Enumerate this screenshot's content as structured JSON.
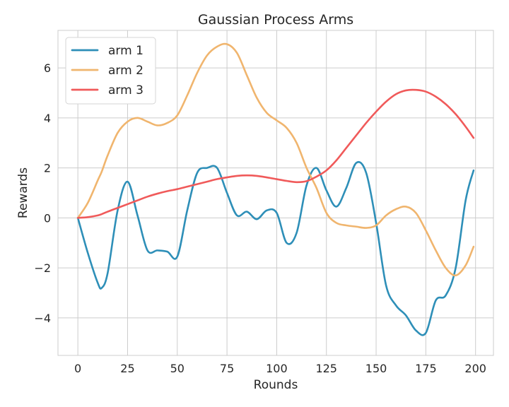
{
  "chart_data": {
    "type": "line",
    "title": "Gaussian Process Arms",
    "xlabel": "Rounds",
    "ylabel": "Rewards",
    "xlim": [
      -10,
      209
    ],
    "ylim": [
      -5.5,
      7.5
    ],
    "xticks": [
      0,
      25,
      50,
      75,
      100,
      125,
      150,
      175,
      200
    ],
    "yticks": [
      -4,
      -2,
      0,
      2,
      4,
      6
    ],
    "grid": true,
    "legend_position": "top-left",
    "x": [
      0,
      5,
      10,
      12,
      15,
      20,
      25,
      30,
      35,
      40,
      45,
      50,
      55,
      60,
      65,
      70,
      75,
      80,
      85,
      90,
      95,
      100,
      105,
      110,
      115,
      120,
      125,
      130,
      135,
      140,
      145,
      150,
      155,
      160,
      165,
      170,
      175,
      180,
      185,
      190,
      195,
      199
    ],
    "series": [
      {
        "name": "arm 1",
        "color": "#2e8fb8",
        "values": [
          0,
          -1.4,
          -2.6,
          -2.8,
          -2.2,
          0.3,
          1.45,
          0.1,
          -1.3,
          -1.3,
          -1.35,
          -1.55,
          0.3,
          1.8,
          2.0,
          2.0,
          1.0,
          0.1,
          0.25,
          -0.05,
          0.3,
          0.2,
          -1.0,
          -0.6,
          1.3,
          2.0,
          1.1,
          0.45,
          1.2,
          2.2,
          1.8,
          -0.2,
          -2.7,
          -3.5,
          -3.9,
          -4.5,
          -4.6,
          -3.3,
          -3.1,
          -2.0,
          0.7,
          1.9
        ]
      },
      {
        "name": "arm 2",
        "color": "#f0b56e",
        "values": [
          0,
          0.6,
          1.5,
          1.85,
          2.5,
          3.4,
          3.85,
          4.0,
          3.85,
          3.7,
          3.8,
          4.1,
          4.9,
          5.8,
          6.5,
          6.85,
          6.95,
          6.6,
          5.7,
          4.8,
          4.2,
          3.9,
          3.6,
          3.0,
          2.0,
          1.2,
          0.2,
          -0.2,
          -0.3,
          -0.35,
          -0.4,
          -0.3,
          0.1,
          0.35,
          0.45,
          0.2,
          -0.5,
          -1.3,
          -2.0,
          -2.3,
          -1.9,
          -1.15
        ]
      },
      {
        "name": "arm 3",
        "color": "#f05a5a",
        "values": [
          0,
          0.03,
          0.1,
          0.15,
          0.25,
          0.4,
          0.55,
          0.7,
          0.85,
          0.97,
          1.07,
          1.15,
          1.25,
          1.35,
          1.45,
          1.55,
          1.62,
          1.68,
          1.7,
          1.68,
          1.62,
          1.55,
          1.48,
          1.43,
          1.47,
          1.65,
          1.9,
          2.3,
          2.8,
          3.3,
          3.8,
          4.25,
          4.65,
          4.95,
          5.1,
          5.12,
          5.05,
          4.85,
          4.55,
          4.15,
          3.65,
          3.2
        ]
      }
    ]
  }
}
